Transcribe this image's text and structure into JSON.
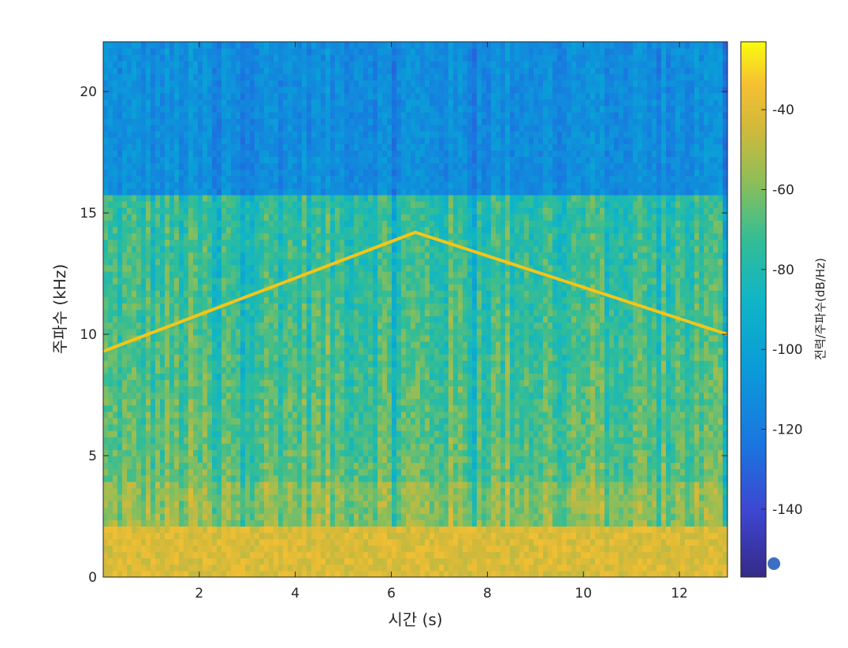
{
  "chart_data": {
    "type": "heatmap",
    "subtype": "spectrogram",
    "title": "",
    "xlabel": "시간 (s)",
    "ylabel": "주파수 (kHz)",
    "colorbar_label": "전력/주파수(dB/Hz)",
    "colormap": "parula",
    "xlim": [
      0,
      13
    ],
    "ylim": [
      0,
      22.05
    ],
    "clim": [
      -157,
      -23
    ],
    "x_ticks": [
      2,
      4,
      6,
      8,
      10,
      12
    ],
    "x_tick_labels": [
      "2",
      "4",
      "6",
      "8",
      "10",
      "12"
    ],
    "y_ticks": [
      0,
      5,
      10,
      15,
      20
    ],
    "y_tick_labels": [
      "0",
      "5",
      "10",
      "15",
      "20"
    ],
    "colorbar_ticks": [
      -40,
      -60,
      -80,
      -100,
      -120,
      -140
    ],
    "colorbar_tick_labels": [
      "-40",
      "-60",
      "-80",
      "-100",
      "-120",
      "-140"
    ],
    "grid": false,
    "features": {
      "high_band_cutoff_khz": 15.7,
      "low_band_energy_khz": [
        0,
        2
      ]
    },
    "overlay_line": {
      "color": "#f5c518",
      "points": [
        {
          "x": 0.0,
          "y": 9.3
        },
        {
          "x": 6.5,
          "y": 14.2
        },
        {
          "x": 13.0,
          "y": 10.0
        }
      ]
    },
    "colors": {
      "parula_low": "#352a87",
      "parula_mid": "#21b5a3",
      "parula_high": "#f9fb0e",
      "overlay": "#f5c518",
      "marker": "#3b6fc4"
    }
  }
}
